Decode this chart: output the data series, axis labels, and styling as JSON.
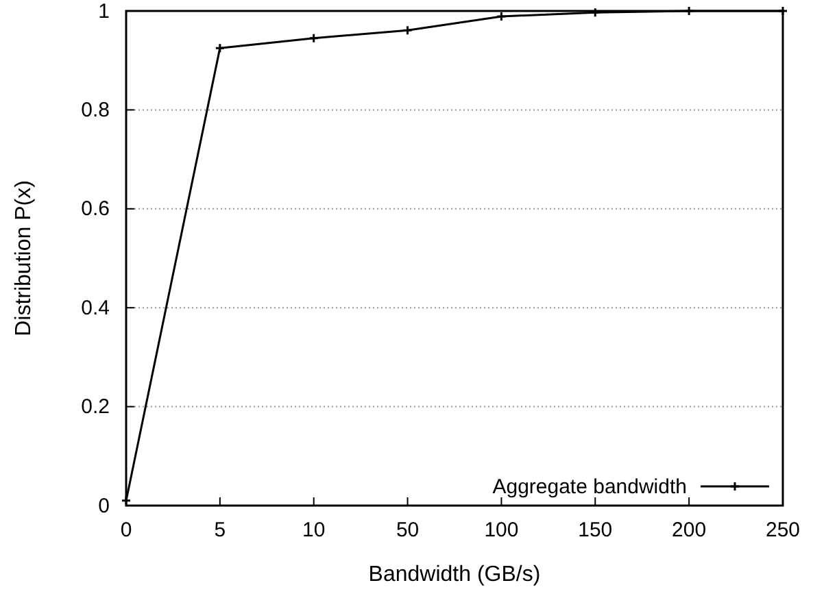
{
  "chart_data": {
    "type": "line",
    "xlabel": "Bandwidth (GB/s)",
    "ylabel": "Distribution P(x)",
    "categories": [
      "0",
      "5",
      "10",
      "50",
      "100",
      "150",
      "200",
      "250"
    ],
    "series": [
      {
        "name": "Aggregate bandwidth",
        "color": "#000000",
        "values": [
          0.01,
          0.925,
          0.945,
          0.961,
          0.989,
          0.997,
          1.0,
          1.0
        ]
      }
    ],
    "ylim": [
      0,
      1
    ],
    "yticks": [
      0,
      0.2,
      0.4,
      0.6,
      0.8,
      1
    ],
    "grid": "y",
    "legend": "bottom right",
    "marker": "cross",
    "line_style": "solid"
  }
}
